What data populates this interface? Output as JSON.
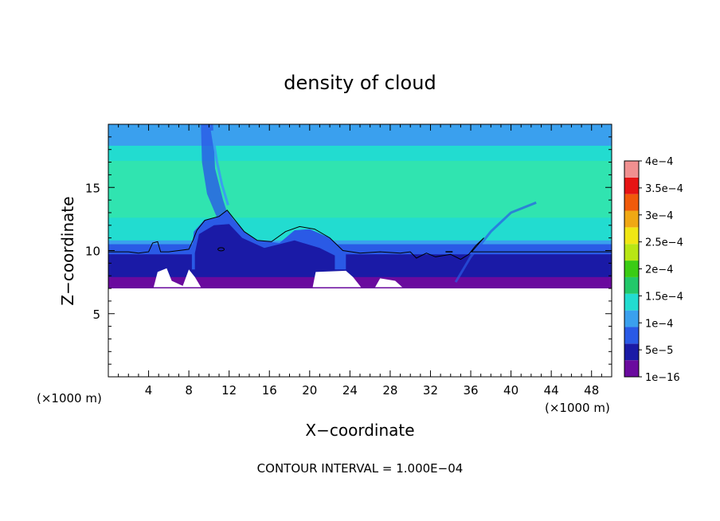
{
  "chart_data": {
    "type": "heatmap",
    "title": "density of cloud",
    "xlabel": "X−coordinate",
    "ylabel": "Z−coordinate",
    "x_unit_left": "(×1000 m)",
    "x_unit_right": "(×1000 m)",
    "xlim": [
      0,
      50
    ],
    "ylim": [
      0,
      20
    ],
    "x_ticks": [
      4,
      8,
      12,
      16,
      20,
      24,
      28,
      32,
      36,
      40,
      44,
      48
    ],
    "x_tick_labels": [
      "4",
      "8",
      "12",
      "16",
      "20",
      "24",
      "28",
      "32",
      "36",
      "40",
      "44",
      "48"
    ],
    "y_ticks": [
      5,
      10,
      15
    ],
    "y_tick_labels": [
      "5",
      "10",
      "15"
    ],
    "grid": false,
    "contour_interval_text": "CONTOUR INTERVAL = 1.000E−04",
    "colorbar": {
      "labels": [
        "1e−16",
        "5e−5",
        "1e−4",
        "1.5e−4",
        "2e−4",
        "2.5e−4",
        "3e−4",
        "3.5e−4",
        "4e−4"
      ],
      "colors": [
        "#6a0a9e",
        "#1a1aa6",
        "#2a5ae6",
        "#3aa0ee",
        "#22dcd0",
        "#22c86a",
        "#3acc14",
        "#b8e614",
        "#f0e614",
        "#f0a814",
        "#f05a0a",
        "#e61414",
        "#f09090"
      ]
    },
    "colors": {
      "empty": "#ffffff",
      "base_violet": "#6a0a9e",
      "deep_blue": "#1a1aa6",
      "mid_blue": "#2a5ae6",
      "light_blue": "#3aa0ee",
      "cyan": "#22dcd0",
      "aqua_green": "#30e4b0"
    }
  }
}
